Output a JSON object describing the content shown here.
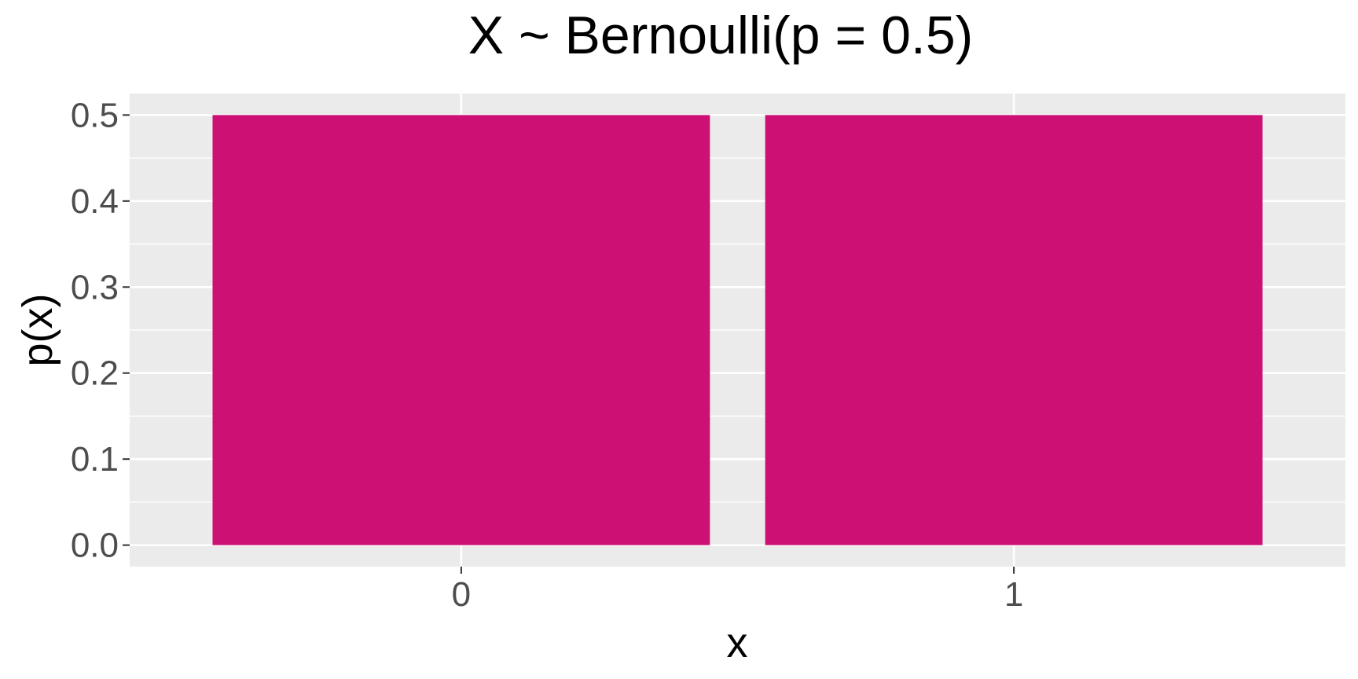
{
  "chart_data": {
    "type": "bar",
    "title": "X ~ Bernoulli(p = 0.5)",
    "xlabel": "x",
    "ylabel": "p(x)",
    "categories": [
      "0",
      "1"
    ],
    "values": [
      0.5,
      0.5
    ],
    "ylim": [
      -0.025,
      0.525
    ],
    "yticks": [
      0.0,
      0.1,
      0.2,
      0.3,
      0.4,
      0.5
    ],
    "ytick_labels": [
      "0.0",
      "0.1",
      "0.2",
      "0.3",
      "0.4",
      "0.5"
    ],
    "grid": true,
    "legend": "none",
    "colors": {
      "bar": "#CD1174",
      "panel": "#EBEBEB",
      "grid": "#FFFFFF"
    }
  }
}
